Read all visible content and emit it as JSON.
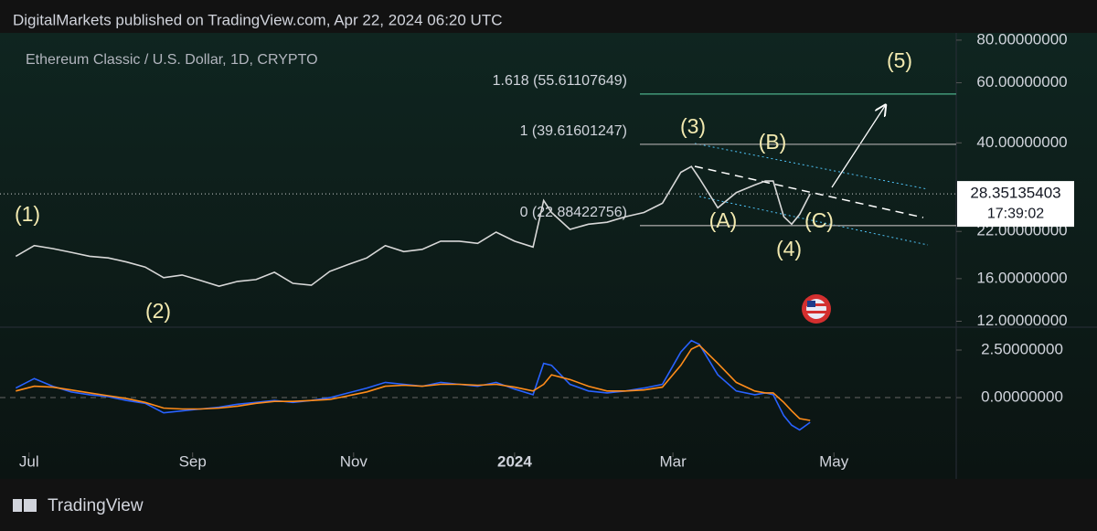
{
  "page": {
    "publisher": "DigitalMarkets published on TradingView.com, Apr 22, 2024 06:20 UTC",
    "brand": "TradingView"
  },
  "chart_data": [
    {
      "type": "line",
      "title": "Ethereum Classic / U.S. Dollar, 1D, CRYPTO",
      "log_scale": true,
      "grid": false,
      "x": [
        "2023-06-26",
        "2023-07-03",
        "2023-07-10",
        "2023-07-17",
        "2023-07-24",
        "2023-07-31",
        "2023-08-07",
        "2023-08-14",
        "2023-08-21",
        "2023-08-28",
        "2023-09-04",
        "2023-09-11",
        "2023-09-18",
        "2023-09-25",
        "2023-10-02",
        "2023-10-09",
        "2023-10-16",
        "2023-10-23",
        "2023-10-30",
        "2023-11-06",
        "2023-11-13",
        "2023-11-20",
        "2023-11-27",
        "2023-12-04",
        "2023-12-11",
        "2023-12-18",
        "2023-12-25",
        "2024-01-01",
        "2024-01-08",
        "2024-01-12",
        "2024-01-15",
        "2024-01-22",
        "2024-01-29",
        "2024-02-05",
        "2024-02-12",
        "2024-02-19",
        "2024-02-26",
        "2024-03-04",
        "2024-03-08",
        "2024-03-11",
        "2024-03-18",
        "2024-03-25",
        "2024-04-01",
        "2024-04-05",
        "2024-04-08",
        "2024-04-12",
        "2024-04-15",
        "2024-04-18",
        "2024-04-22"
      ],
      "series": [
        {
          "color": "#d8d8d8",
          "values": [
            18.6,
            20.0,
            19.6,
            19.1,
            18.6,
            18.4,
            17.9,
            17.3,
            16.1,
            16.4,
            15.8,
            15.2,
            15.7,
            15.9,
            16.7,
            15.5,
            15.3,
            16.8,
            17.6,
            18.4,
            20.0,
            19.2,
            19.5,
            20.6,
            20.6,
            20.3,
            21.9,
            20.6,
            19.8,
            27.1,
            25.0,
            22.3,
            23.1,
            23.4,
            24.3,
            25.0,
            26.6,
            32.8,
            34.1,
            31.5,
            25.8,
            28.6,
            30.1,
            30.9,
            30.9,
            24.3,
            23.1,
            24.7,
            28.35
          ]
        }
      ],
      "xlim": [
        "2023-06-20",
        "2024-06-16"
      ],
      "xticks": [
        {
          "value": "2023-07-01",
          "label": "Jul"
        },
        {
          "value": "2023-09-01",
          "label": "Sep"
        },
        {
          "value": "2023-11-01",
          "label": "Nov"
        },
        {
          "value": "2024-01-01",
          "label": "2024"
        },
        {
          "value": "2024-03-01",
          "label": "Mar"
        },
        {
          "value": "2024-05-01",
          "label": "May"
        }
      ],
      "ylim": [
        11.6,
        84
      ],
      "yticks": [
        {
          "value": 12,
          "label": "12.00000000"
        },
        {
          "value": 16,
          "label": "16.00000000"
        },
        {
          "value": 22,
          "label": "22.00000000"
        },
        {
          "value": 40,
          "label": "40.00000000"
        },
        {
          "value": 60,
          "label": "60.00000000"
        },
        {
          "value": 80,
          "label": "80.00000000"
        }
      ],
      "last_price": 28.35135403,
      "countdown": "17:39:02",
      "fib_levels": [
        {
          "value": 55.61107649,
          "label": "1.618 (55.61107649)"
        },
        {
          "value": 39.61601247,
          "label": "1 (39.61601247)"
        },
        {
          "value": 22.88422756,
          "label": "0 (22.88422756)"
        }
      ],
      "annotations": [
        "(1)",
        "(2)",
        "(3)",
        "(4)",
        "(5)",
        "(A)",
        "(B)",
        "(C)"
      ]
    },
    {
      "type": "line",
      "grid": false,
      "series": [
        {
          "color": "#2962ff",
          "values": [
            0.5,
            1.0,
            0.6,
            0.3,
            0.15,
            0.05,
            -0.15,
            -0.3,
            -0.8,
            -0.7,
            -0.6,
            -0.5,
            -0.35,
            -0.25,
            -0.15,
            -0.25,
            -0.15,
            0,
            0.25,
            0.5,
            0.8,
            0.7,
            0.6,
            0.8,
            0.7,
            0.6,
            0.8,
            0.45,
            0.15,
            1.8,
            1.7,
            0.7,
            0.35,
            0.25,
            0.35,
            0.5,
            0.7,
            2.4,
            3.0,
            2.8,
            1.2,
            0.35,
            0.15,
            0.25,
            0.15,
            -0.95,
            -1.45,
            -1.7,
            -1.3
          ]
        },
        {
          "color": "#ff8c1a",
          "values": [
            0.35,
            0.6,
            0.55,
            0.4,
            0.25,
            0.1,
            -0.05,
            -0.25,
            -0.55,
            -0.6,
            -0.6,
            -0.55,
            -0.45,
            -0.3,
            -0.2,
            -0.2,
            -0.15,
            -0.1,
            0.1,
            0.3,
            0.6,
            0.65,
            0.6,
            0.7,
            0.7,
            0.65,
            0.7,
            0.55,
            0.35,
            0.7,
            1.2,
            0.95,
            0.6,
            0.35,
            0.35,
            0.4,
            0.55,
            1.7,
            2.55,
            2.75,
            1.8,
            0.8,
            0.35,
            0.25,
            0.25,
            -0.25,
            -0.7,
            -1.1,
            -1.2
          ]
        }
      ],
      "ylim": [
        -2.88,
        3.51
      ],
      "yticks": [
        {
          "value": 0,
          "label": "0.00000000"
        },
        {
          "value": 2.5,
          "label": "2.50000000"
        }
      ]
    }
  ]
}
